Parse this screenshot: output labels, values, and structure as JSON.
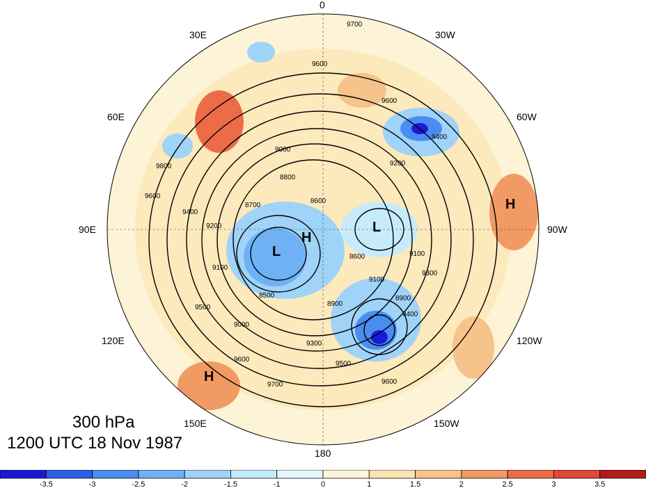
{
  "title": {
    "level": "300 hPa",
    "time": "1200 UTC 18 Nov 1987"
  },
  "longitude_labels": [
    "0",
    "30W",
    "60W",
    "90W",
    "120W",
    "150W",
    "180",
    "150E",
    "120E",
    "90E",
    "60E",
    "30E"
  ],
  "contour_labels": [
    "9700",
    "9600",
    "9600",
    "9400",
    "9200",
    "9000",
    "8800",
    "8700",
    "8600",
    "8600",
    "9100",
    "9200",
    "9400",
    "9600",
    "9800",
    "9500",
    "9300",
    "9100",
    "9000",
    "8900",
    "8500",
    "9500",
    "9600",
    "9700",
    "9300",
    "9100",
    "9600",
    "8900",
    "9400"
  ],
  "pressure_centers": [
    "H",
    "H",
    "H",
    "L",
    "L"
  ],
  "colorbar": {
    "ticks": [
      "-3.5",
      "-3",
      "-2.5",
      "-2",
      "-1.5",
      "-1",
      "0",
      "1",
      "1.5",
      "2",
      "2.5",
      "3",
      "3.5"
    ],
    "colors": [
      "#1a1ad6",
      "#2e5fe6",
      "#4a8cf0",
      "#6eb2f5",
      "#9fd3f8",
      "#c8ebfb",
      "#e6f6fc",
      "#fdf5d8",
      "#fbe4b0",
      "#f6c48a",
      "#f29a64",
      "#ec6c48",
      "#e0473a",
      "#b01c1c"
    ]
  },
  "colors": {
    "land_outline": "#555555",
    "contour": "#000000",
    "background": "#fdf3d6"
  }
}
